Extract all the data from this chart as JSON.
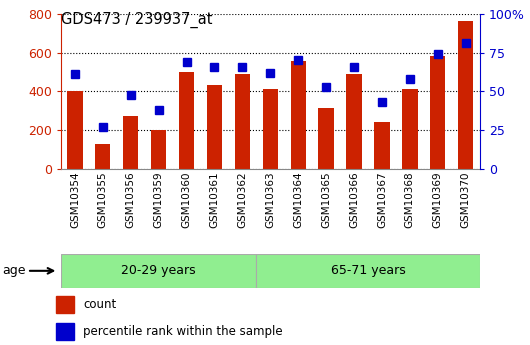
{
  "title": "GDS473 / 239937_at",
  "categories": [
    "GSM10354",
    "GSM10355",
    "GSM10356",
    "GSM10359",
    "GSM10360",
    "GSM10361",
    "GSM10362",
    "GSM10363",
    "GSM10364",
    "GSM10365",
    "GSM10366",
    "GSM10367",
    "GSM10368",
    "GSM10369",
    "GSM10370"
  ],
  "bar_values": [
    400,
    130,
    275,
    200,
    500,
    435,
    490,
    415,
    555,
    315,
    490,
    240,
    415,
    580,
    765
  ],
  "percentile_values": [
    61,
    27,
    48,
    38,
    69,
    66,
    66,
    62,
    70,
    53,
    66,
    43,
    58,
    74,
    81
  ],
  "bar_color": "#cc2200",
  "point_color": "#0000cc",
  "ylim_left": [
    0,
    800
  ],
  "ylim_right": [
    0,
    100
  ],
  "left_yticks": [
    0,
    200,
    400,
    600,
    800
  ],
  "right_yticks": [
    0,
    25,
    50,
    75,
    100
  ],
  "right_yticklabels": [
    "0",
    "25",
    "50",
    "75",
    "100%"
  ],
  "left_tick_color": "#cc2200",
  "right_tick_color": "#0000cc",
  "group1_label": "20-29 years",
  "group2_label": "65-71 years",
  "group1_count": 7,
  "group_bg_color": "#90ee90",
  "xtick_bg_color": "#c8c8c8",
  "age_label": "age",
  "legend_count": "count",
  "legend_percentile": "percentile rank within the sample",
  "bg_color": "#ffffff"
}
